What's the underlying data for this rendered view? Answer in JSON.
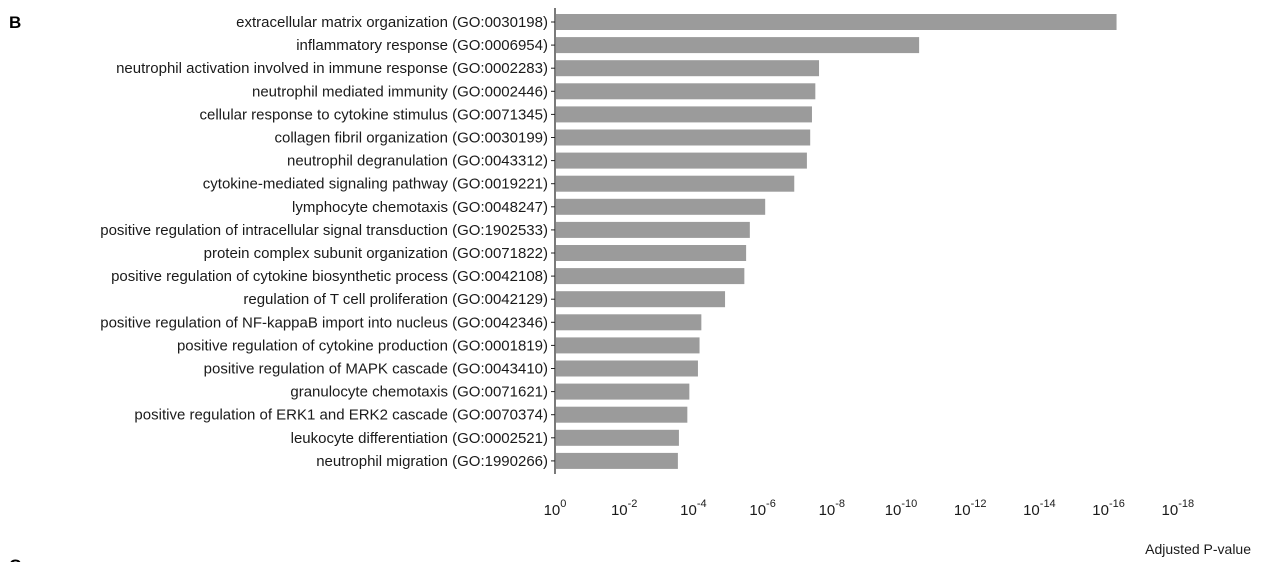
{
  "panel_label": "B",
  "next_panel_label": "C",
  "chart_data": {
    "type": "bar",
    "orientation": "horizontal",
    "xscale": "log10-reversed",
    "xlabel": "Adjusted P-value",
    "xlim": [
      1,
      1e-18
    ],
    "xtick_labels": [
      {
        "base": "10",
        "exp": "0"
      },
      {
        "base": "10",
        "exp": "-2"
      },
      {
        "base": "10",
        "exp": "-4"
      },
      {
        "base": "10",
        "exp": "-6"
      },
      {
        "base": "10",
        "exp": "-8"
      },
      {
        "base": "10",
        "exp": "-10"
      },
      {
        "base": "10",
        "exp": "-12"
      },
      {
        "base": "10",
        "exp": "-14"
      },
      {
        "base": "10",
        "exp": "-16"
      },
      {
        "base": "10",
        "exp": "-18"
      }
    ],
    "categories": [
      "extracellular matrix organization (GO:0030198)",
      "inflammatory response (GO:0006954)",
      "neutrophil activation involved in immune response (GO:0002283)",
      "neutrophil mediated immunity (GO:0002446)",
      "cellular response to cytokine stimulus (GO:0071345)",
      "collagen fibril organization (GO:0030199)",
      "neutrophil degranulation (GO:0043312)",
      "cytokine-mediated signaling pathway (GO:0019221)",
      "lymphocyte chemotaxis (GO:0048247)",
      "positive regulation of intracellular signal transduction (GO:1902533)",
      "protein complex subunit organization (GO:0071822)",
      "positive regulation of cytokine biosynthetic process (GO:0042108)",
      "regulation of T cell proliferation (GO:0042129)",
      "positive regulation of NF-kappaB import into nucleus (GO:0042346)",
      "positive regulation of cytokine production (GO:0001819)",
      "positive regulation of MAPK cascade (GO:0043410)",
      "granulocyte chemotaxis (GO:0071621)",
      "positive regulation of ERK1 and ERK2 cascade (GO:0070374)",
      "leukocyte differentiation (GO:0002521)",
      "neutrophil migration (GO:1990266)"
    ],
    "values": [
      6.3e-17,
      3.2e-11,
      2.5e-08,
      3.2e-08,
      4e-08,
      4.5e-08,
      5.6e-08,
      1.3e-07,
      9e-07,
      2.5e-06,
      3.2e-06,
      3.6e-06,
      1.3e-05,
      6.3e-05,
      7.1e-05,
      7.9e-05,
      0.00014,
      0.00016,
      0.00028,
      0.0003
    ],
    "bar_color": "#9b9b9b",
    "grid": false
  }
}
